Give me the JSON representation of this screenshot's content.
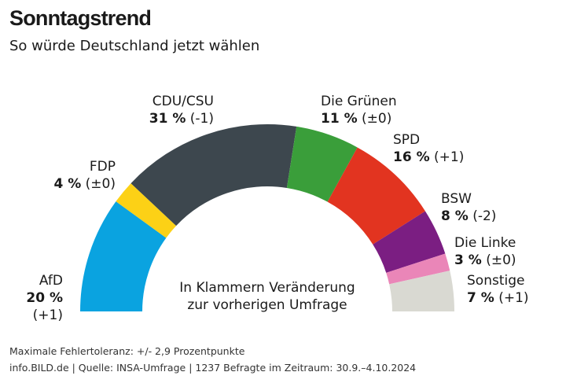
{
  "title": "Sonntagstrend",
  "subtitle": "So würde Deutschland jetzt wählen",
  "note": [
    "In Klammern Veränderung",
    "zur vorherigen Umfrage"
  ],
  "footer": [
    "Maximale Fehlertoleranz: +/- 2,9 Prozentpunkte",
    "info.BILD.de | Quelle: INSA-Umfrage | 1237 Befragte im Zeitraum: 30.9.–4.10.2024"
  ],
  "chart_data": {
    "type": "pie",
    "shape": "semicircle-donut",
    "title": "Sonntagstrend",
    "unit": "%",
    "slices": [
      {
        "name": "AfD",
        "value": 20,
        "change": "(+1)",
        "value_label": "20 %",
        "color": "#0aa3e0"
      },
      {
        "name": "FDP",
        "value": 4,
        "change": "(±0)",
        "value_label": "4 %",
        "color": "#fcd116"
      },
      {
        "name": "CDU/CSU",
        "value": 31,
        "change": "(-1)",
        "value_label": "31 %",
        "color": "#3d474e"
      },
      {
        "name": "Die Grünen",
        "value": 11,
        "change": "(±0)",
        "value_label": "11 %",
        "color": "#3a9e3a"
      },
      {
        "name": "SPD",
        "value": 16,
        "change": "(+1)",
        "value_label": "16 %",
        "color": "#e23420"
      },
      {
        "name": "BSW",
        "value": 8,
        "change": "(-2)",
        "value_label": "8 %",
        "color": "#7b1e82"
      },
      {
        "name": "Die Linke",
        "value": 3,
        "change": "(±0)",
        "value_label": "3 %",
        "color": "#ea86b8"
      },
      {
        "name": "Sonstige",
        "value": 7,
        "change": "(+1)",
        "value_label": "7 %",
        "color": "#d9d9d2"
      }
    ]
  }
}
